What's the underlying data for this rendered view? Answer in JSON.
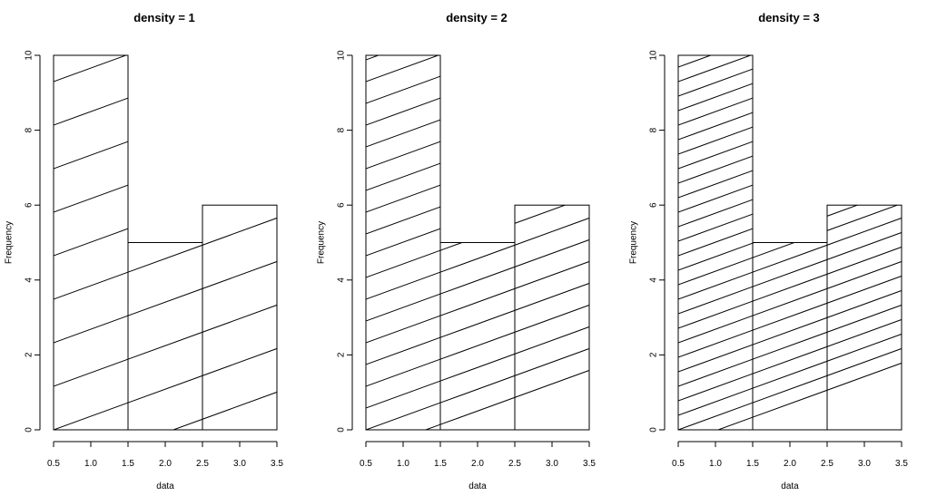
{
  "chart_data": [
    {
      "type": "bar",
      "title": "density = 1",
      "density": 1,
      "xlabel": "data",
      "ylabel": "Frequency",
      "bins": [
        [
          0.5,
          1.5
        ],
        [
          1.5,
          2.5
        ],
        [
          2.5,
          3.5
        ]
      ],
      "values": [
        10,
        5,
        6
      ],
      "xlim": [
        0.5,
        3.5
      ],
      "ylim": [
        0,
        10
      ],
      "xticks": [
        "0.5",
        "1.0",
        "1.5",
        "2.0",
        "2.5",
        "3.0",
        "3.5"
      ],
      "yticks": [
        "0",
        "2",
        "4",
        "6",
        "8",
        "10"
      ]
    },
    {
      "type": "bar",
      "title": "density = 2",
      "density": 2,
      "xlabel": "data",
      "ylabel": "Frequency",
      "bins": [
        [
          0.5,
          1.5
        ],
        [
          1.5,
          2.5
        ],
        [
          2.5,
          3.5
        ]
      ],
      "values": [
        10,
        5,
        6
      ],
      "xlim": [
        0.5,
        3.5
      ],
      "ylim": [
        0,
        10
      ],
      "xticks": [
        "0.5",
        "1.0",
        "1.5",
        "2.0",
        "2.5",
        "3.0",
        "3.5"
      ],
      "yticks": [
        "0",
        "2",
        "4",
        "6",
        "8",
        "10"
      ]
    },
    {
      "type": "bar",
      "title": "density = 3",
      "density": 3,
      "xlabel": "data",
      "ylabel": "Frequency",
      "bins": [
        [
          0.5,
          1.5
        ],
        [
          1.5,
          2.5
        ],
        [
          2.5,
          3.5
        ]
      ],
      "values": [
        10,
        5,
        6
      ],
      "xlim": [
        0.5,
        3.5
      ],
      "ylim": [
        0,
        10
      ],
      "xticks": [
        "0.5",
        "1.0",
        "1.5",
        "2.0",
        "2.5",
        "3.0",
        "3.5"
      ],
      "yticks": [
        "0",
        "2",
        "4",
        "6",
        "8",
        "10"
      ]
    }
  ]
}
